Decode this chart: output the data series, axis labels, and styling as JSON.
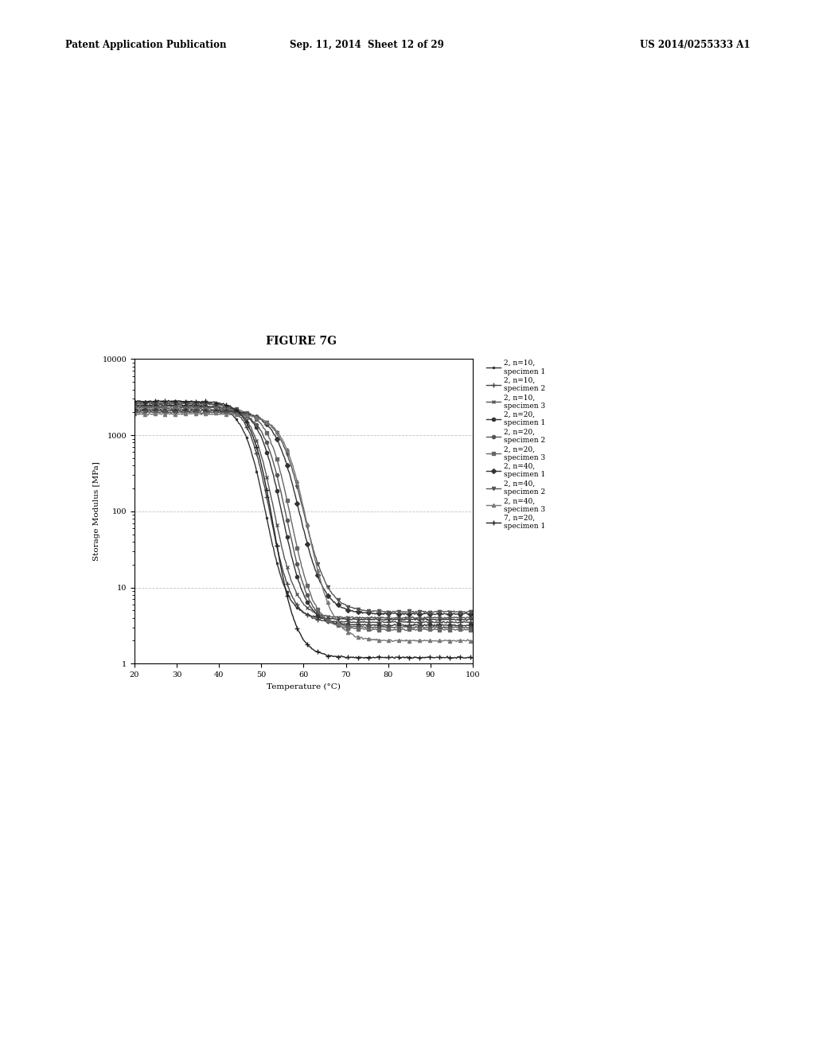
{
  "title": "FIGURE 7G",
  "xlabel": "Temperature (°C)",
  "ylabel": "Storage Modulus [MPa]",
  "xlim": [
    20,
    100
  ],
  "ylim_log": [
    1,
    10000
  ],
  "xticks": [
    20,
    30,
    40,
    50,
    60,
    70,
    80,
    90,
    100
  ],
  "header_left": "Patent Application Publication",
  "header_mid": "Sep. 11, 2014  Sheet 12 of 29",
  "header_right": "US 2014/0255333 A1",
  "legend_entries": [
    "2, n=10,\nspecimen 1",
    "2, n=10,\nspecimen 2",
    "2, n=10,\nspecimen 3",
    "2, n=20,\nspecimen 1",
    "2, n=20,\nspecimen 2",
    "2, n=20,\nspecimen 3",
    "2, n=40,\nspecimen 1",
    "2, n=40,\nspecimen 2",
    "2, n=40,\nspecimen 3",
    "7, n=20,\nspecimen 1"
  ],
  "curve_params": [
    {
      "high": 2500,
      "low": 3.8,
      "mid": 51,
      "steep": 0.38,
      "color": "#333333",
      "marker": ".",
      "ms": 3,
      "lw": 1.0
    },
    {
      "high": 2700,
      "low": 3.5,
      "mid": 52,
      "steep": 0.38,
      "color": "#444444",
      "marker": "+",
      "ms": 4,
      "lw": 1.0
    },
    {
      "high": 2600,
      "low": 4.0,
      "mid": 53,
      "steep": 0.38,
      "color": "#555555",
      "marker": "x",
      "ms": 3,
      "lw": 1.0
    },
    {
      "high": 2400,
      "low": 3.2,
      "mid": 55,
      "steep": 0.36,
      "color": "#333333",
      "marker": "o",
      "ms": 3,
      "lw": 1.0
    },
    {
      "high": 2200,
      "low": 3.0,
      "mid": 56,
      "steep": 0.36,
      "color": "#555555",
      "marker": "o",
      "ms": 3,
      "lw": 1.0
    },
    {
      "high": 2300,
      "low": 2.8,
      "mid": 57,
      "steep": 0.36,
      "color": "#666666",
      "marker": "s",
      "ms": 3,
      "lw": 1.0
    },
    {
      "high": 2100,
      "low": 4.5,
      "mid": 59,
      "steep": 0.34,
      "color": "#333333",
      "marker": "D",
      "ms": 3,
      "lw": 1.0
    },
    {
      "high": 2000,
      "low": 4.8,
      "mid": 60,
      "steep": 0.34,
      "color": "#555555",
      "marker": "v",
      "ms": 3,
      "lw": 1.0
    },
    {
      "high": 1900,
      "low": 2.0,
      "mid": 61,
      "steep": 0.34,
      "color": "#777777",
      "marker": "^",
      "ms": 3,
      "lw": 1.0
    },
    {
      "high": 2800,
      "low": 1.2,
      "mid": 53,
      "steep": 0.37,
      "color": "#222222",
      "marker": "+",
      "ms": 4,
      "lw": 1.0
    }
  ],
  "bg_color": "#ffffff",
  "grid_color": "#999999",
  "grid_alpha": 0.6
}
